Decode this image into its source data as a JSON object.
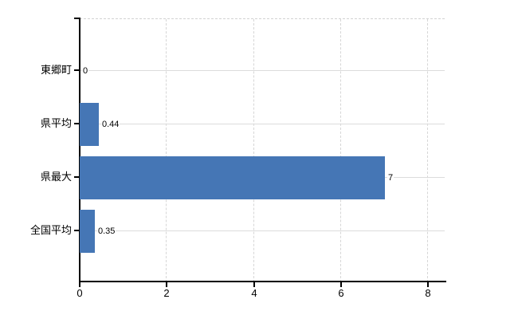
{
  "chart_data": {
    "type": "bar",
    "orientation": "horizontal",
    "title": "",
    "xlabel": "",
    "ylabel": "",
    "categories": [
      "東郷町",
      "県平均",
      "県最大",
      "全国平均"
    ],
    "values": [
      0,
      0.44,
      7,
      0.35
    ],
    "value_labels": [
      "0",
      "0.44",
      "7",
      "0.35"
    ],
    "x_ticks": [
      0,
      2,
      4,
      6,
      8
    ],
    "x_tick_labels": [
      "0",
      "2",
      "4",
      "6",
      "8"
    ],
    "xlim": [
      0,
      8.38
    ],
    "grid": true,
    "legend": "none",
    "bar_color": "#4576b5",
    "hgrid_color": "#dcdcdc",
    "vgrid_color": "#d6d6d6",
    "axis_color": "#000000",
    "text_color": "#000000",
    "background_color": "#ffffff"
  }
}
